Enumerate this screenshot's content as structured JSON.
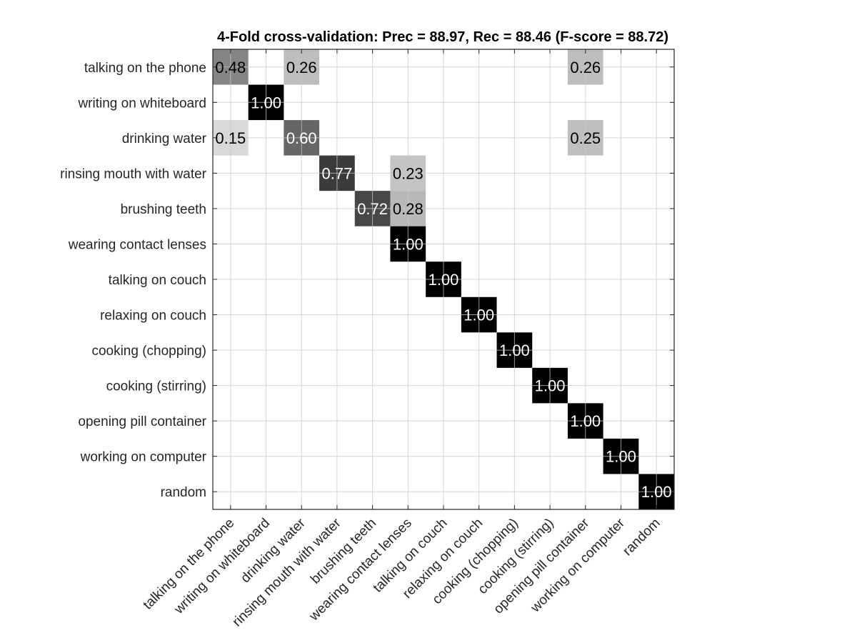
{
  "chart_data": {
    "type": "heatmap",
    "title": "4-Fold cross-validation: Prec = 88.97, Rec = 88.46 (F-score = 88.72)",
    "colormap": "grayscale (white = 0, black = 1)",
    "grid": true,
    "row_labels": [
      "talking on the phone",
      "writing on whiteboard",
      "drinking water",
      "rinsing mouth with water",
      "brushing teeth",
      "wearing contact lenses",
      "talking on couch",
      "relaxing on couch",
      "cooking (chopping)",
      "cooking (stirring)",
      "opening pill container",
      "working on computer",
      "random"
    ],
    "col_labels": [
      "talking on the phone",
      "writing on whiteboard",
      "drinking water",
      "rinsing mouth with water",
      "brushing teeth",
      "wearing contact lenses",
      "talking on couch",
      "relaxing on couch",
      "cooking (chopping)",
      "cooking (stirring)",
      "opening pill container",
      "working on computer",
      "random"
    ],
    "cells": [
      {
        "row": 0,
        "col": 0,
        "value": 0.48,
        "label": "0.48"
      },
      {
        "row": 0,
        "col": 2,
        "value": 0.26,
        "label": "0.26"
      },
      {
        "row": 0,
        "col": 10,
        "value": 0.26,
        "label": "0.26"
      },
      {
        "row": 1,
        "col": 1,
        "value": 1.0,
        "label": "1.00"
      },
      {
        "row": 2,
        "col": 0,
        "value": 0.15,
        "label": "0.15"
      },
      {
        "row": 2,
        "col": 2,
        "value": 0.6,
        "label": "0.60"
      },
      {
        "row": 2,
        "col": 10,
        "value": 0.25,
        "label": "0.25"
      },
      {
        "row": 3,
        "col": 3,
        "value": 0.77,
        "label": "0.77"
      },
      {
        "row": 3,
        "col": 5,
        "value": 0.23,
        "label": "0.23"
      },
      {
        "row": 4,
        "col": 4,
        "value": 0.72,
        "label": "0.72"
      },
      {
        "row": 4,
        "col": 5,
        "value": 0.28,
        "label": "0.28"
      },
      {
        "row": 5,
        "col": 5,
        "value": 1.0,
        "label": "1.00"
      },
      {
        "row": 6,
        "col": 6,
        "value": 1.0,
        "label": "1.00"
      },
      {
        "row": 7,
        "col": 7,
        "value": 1.0,
        "label": "1.00"
      },
      {
        "row": 8,
        "col": 8,
        "value": 1.0,
        "label": "1.00"
      },
      {
        "row": 9,
        "col": 9,
        "value": 1.0,
        "label": "1.00"
      },
      {
        "row": 10,
        "col": 10,
        "value": 1.0,
        "label": "1.00"
      },
      {
        "row": 11,
        "col": 11,
        "value": 1.0,
        "label": "1.00"
      },
      {
        "row": 12,
        "col": 12,
        "value": 1.0,
        "label": "1.00"
      }
    ]
  }
}
